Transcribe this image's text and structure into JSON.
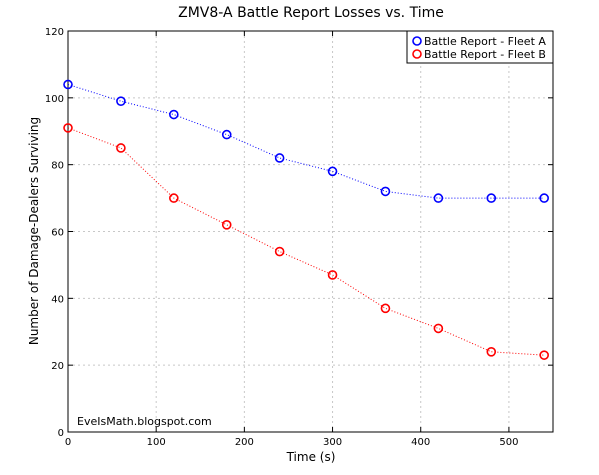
{
  "chart_data": {
    "type": "line",
    "title": "ZMV8-A Battle Report Losses vs. Time",
    "xlabel": "Time (s)",
    "ylabel": "Number of Damage-Dealers Surviving",
    "xlim": [
      0,
      550
    ],
    "ylim": [
      0,
      120
    ],
    "xticks": [
      0,
      100,
      200,
      300,
      400,
      500
    ],
    "yticks": [
      0,
      20,
      40,
      60,
      80,
      100,
      120
    ],
    "grid": true,
    "legend_position": "top-right",
    "annotation": "EveIsMath.blogspot.com",
    "series": [
      {
        "name": "Battle Report - Fleet A",
        "color": "#0000ff",
        "x": [
          0,
          60,
          120,
          180,
          240,
          300,
          360,
          420,
          480,
          540
        ],
        "y": [
          104,
          99,
          95,
          89,
          82,
          78,
          72,
          70,
          70,
          70
        ]
      },
      {
        "name": "Battle Report - Fleet B",
        "color": "#ff0000",
        "x": [
          0,
          60,
          120,
          180,
          240,
          300,
          360,
          420,
          480,
          540
        ],
        "y": [
          91,
          85,
          70,
          62,
          54,
          47,
          37,
          31,
          24,
          23
        ]
      }
    ]
  }
}
